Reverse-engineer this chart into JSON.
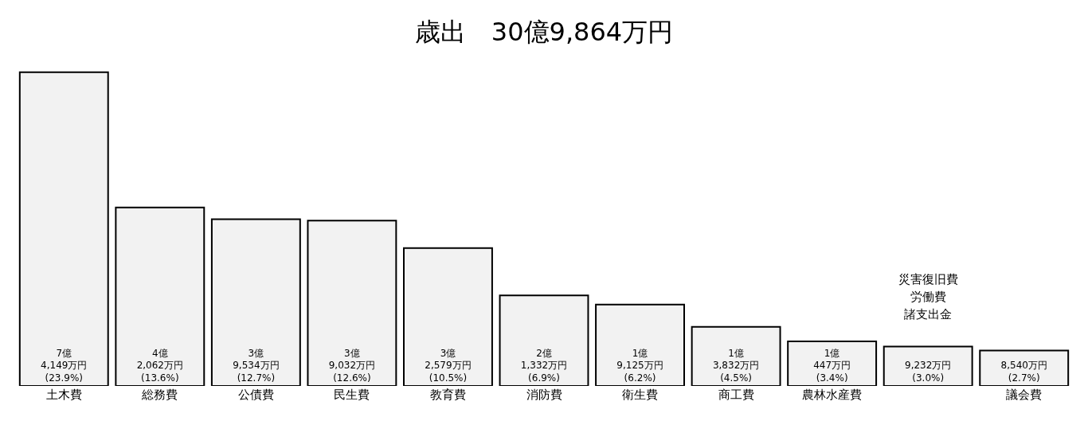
{
  "chart_data": {
    "type": "bar",
    "title": "歳出　30億9,864万円",
    "categories": [
      "土木費",
      "総務費",
      "公債費",
      "民生費",
      "教育費",
      "消防費",
      "衛生費",
      "商工費",
      "農林水産費",
      null,
      "議会費"
    ],
    "values": [
      23.9,
      13.6,
      12.7,
      12.6,
      10.5,
      6.9,
      6.2,
      4.5,
      3.4,
      3.0,
      2.7
    ],
    "value_labels": [
      "7億\n4,149万円\n(23.9%)",
      "4億\n2,062万円\n(13.6%)",
      "3億\n9,534万円\n(12.7%)",
      "3億\n9,032万円\n(12.6%)",
      "3億\n2,579万円\n(10.5%)",
      "2億\n1,332万円\n(6.9%)",
      "1億\n9,125万円\n(6.2%)",
      "1億\n3,832万円\n(4.5%)",
      "1億\n447万円\n(3.4%)",
      "9,232万円\n(3.0%)",
      "8,540万円\n(2.7%)"
    ],
    "annotations": [
      "災害復旧費",
      "労働費",
      "諸支出金"
    ],
    "color": "#f2f2f2",
    "tick_labels": "x",
    "grid": false
  }
}
